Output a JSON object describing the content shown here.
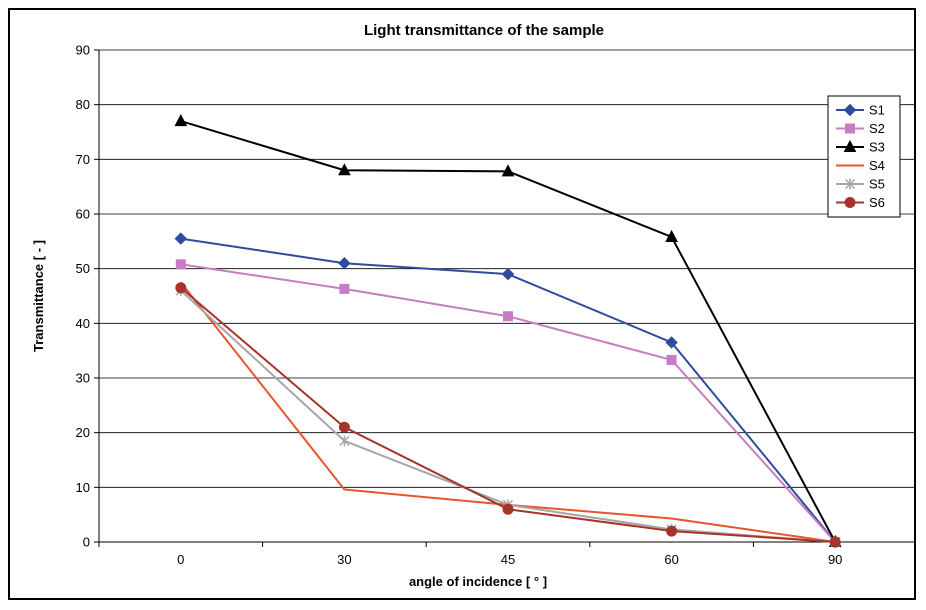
{
  "chart_data": {
    "type": "line",
    "title": "Light transmittance of the sample",
    "xlabel": "angle of incidence [ ° ]",
    "ylabel": "Transmittance [ - ]",
    "categories": [
      "0",
      "30",
      "45",
      "60",
      "90"
    ],
    "ylim": [
      0,
      90
    ],
    "yticks": [
      0,
      10,
      20,
      30,
      40,
      50,
      60,
      70,
      80,
      90
    ],
    "grid": true,
    "legend_position": "top-right",
    "series": [
      {
        "name": "S1",
        "color": "#2e4b9e",
        "marker": "diamond",
        "values": [
          55.5,
          51,
          49,
          36.5,
          0
        ]
      },
      {
        "name": "S2",
        "color": "#c77cc4",
        "marker": "square",
        "values": [
          50.8,
          46.3,
          41.3,
          33.3,
          0
        ]
      },
      {
        "name": "S3",
        "color": "#000000",
        "marker": "triangle",
        "values": [
          77,
          68,
          67.8,
          55.8,
          0
        ]
      },
      {
        "name": "S4",
        "color": "#e8552a",
        "marker": "none",
        "values": [
          47.5,
          9.6,
          6.8,
          4.3,
          0
        ]
      },
      {
        "name": "S5",
        "color": "#a6a6a6",
        "marker": "star",
        "values": [
          46,
          18.5,
          6.8,
          2.3,
          0
        ]
      },
      {
        "name": "S6",
        "color": "#a8332a",
        "marker": "circle",
        "values": [
          46.5,
          21,
          6,
          2,
          0
        ]
      }
    ]
  }
}
